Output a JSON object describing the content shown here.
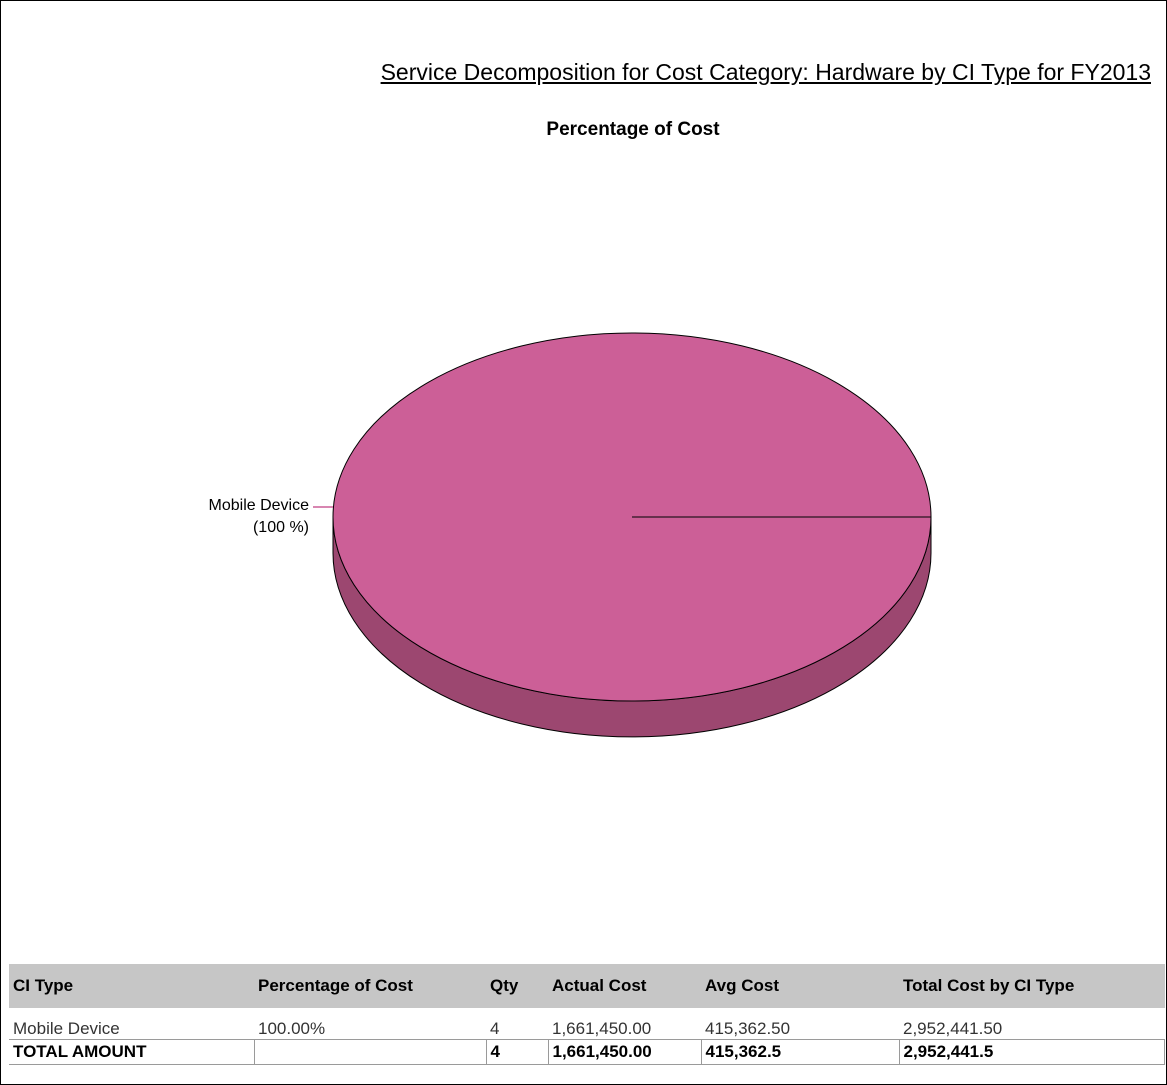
{
  "report_title": "Service Decomposition for Cost Category: Hardware by CI Type for FY2013",
  "chart_data": {
    "type": "pie",
    "title": "Percentage of Cost",
    "slices": [
      {
        "label": "Mobile Device",
        "percent_label": "(100 %)",
        "value": 100,
        "color": "#cc5f97",
        "side_color": "#9c4770"
      }
    ]
  },
  "table": {
    "headers": [
      "CI Type",
      "Percentage of Cost",
      "Qty",
      "Actual Cost",
      "Avg Cost",
      "Total Cost by CI Type"
    ],
    "rows": [
      [
        "Mobile Device",
        "100.00%",
        "4",
        "1,661,450.00",
        "415,362.50",
        "2,952,441.50"
      ]
    ],
    "total": [
      "TOTAL AMOUNT",
      "",
      "4",
      "1,661,450.00",
      "415,362.5",
      "2,952,441.5"
    ]
  }
}
